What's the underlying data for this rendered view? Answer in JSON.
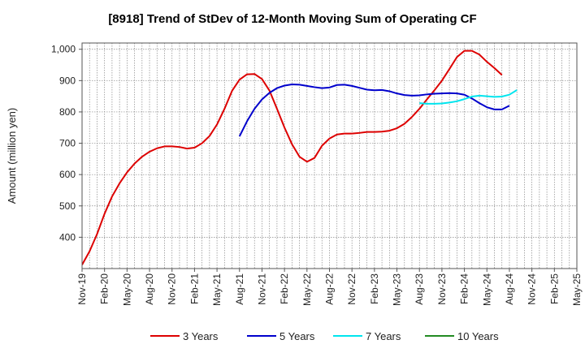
{
  "chart_data": {
    "type": "line",
    "title": "[8918]  Trend of StDev of 12-Month Moving Sum of Operating CF",
    "ylabel": "Amount (million yen)",
    "xlabel": "",
    "x_ticks": [
      "Nov-19",
      "Feb-20",
      "May-20",
      "Aug-20",
      "Nov-20",
      "Feb-21",
      "May-21",
      "Aug-21",
      "Nov-21",
      "Feb-22",
      "May-22",
      "Aug-22",
      "Nov-22",
      "Feb-23",
      "May-23",
      "Aug-23",
      "Nov-23",
      "Feb-24",
      "May-24",
      "Aug-24",
      "Nov-24",
      "Feb-25",
      "May-25"
    ],
    "y_ticks": [
      400,
      500,
      600,
      700,
      800,
      900,
      1000
    ],
    "y_tick_labels": [
      "400",
      "500",
      "600",
      "700",
      "800",
      "900",
      "1,000"
    ],
    "ylim": [
      300,
      1020
    ],
    "x_range": [
      "2019-11",
      "2025-05"
    ],
    "grid": true,
    "legend_position": "bottom",
    "series": [
      {
        "name": "3 Years",
        "color": "#dd0000",
        "start": "2019-11",
        "values": [
          312,
          355,
          410,
          475,
          530,
          572,
          607,
          635,
          657,
          673,
          684,
          690,
          690,
          688,
          683,
          686,
          700,
          723,
          760,
          810,
          867,
          903,
          920,
          921,
          905,
          868,
          810,
          750,
          697,
          657,
          641,
          653,
          692,
          715,
          728,
          731,
          731,
          733,
          736,
          736,
          737,
          740,
          748,
          762,
          784,
          810,
          840,
          869,
          900,
          937,
          975,
          995,
          995,
          983,
          960,
          940,
          918
        ]
      },
      {
        "name": "5 Years",
        "color": "#0000cc",
        "start": "2021-08",
        "values": [
          722,
          770,
          810,
          840,
          861,
          876,
          884,
          888,
          887,
          883,
          879,
          876,
          878,
          886,
          887,
          883,
          877,
          871,
          869,
          870,
          866,
          859,
          854,
          852,
          853,
          856,
          858,
          859,
          860,
          859,
          855,
          843,
          828,
          815,
          808,
          808,
          820
        ]
      },
      {
        "name": "7 Years",
        "color": "#00e5ee",
        "start": "2023-08",
        "values": [
          828,
          826,
          826,
          827,
          830,
          834,
          841,
          849,
          852,
          850,
          848,
          849,
          855,
          870
        ]
      },
      {
        "name": "10 Years",
        "color": "#228b22",
        "start": "2023-08",
        "values": []
      }
    ]
  }
}
